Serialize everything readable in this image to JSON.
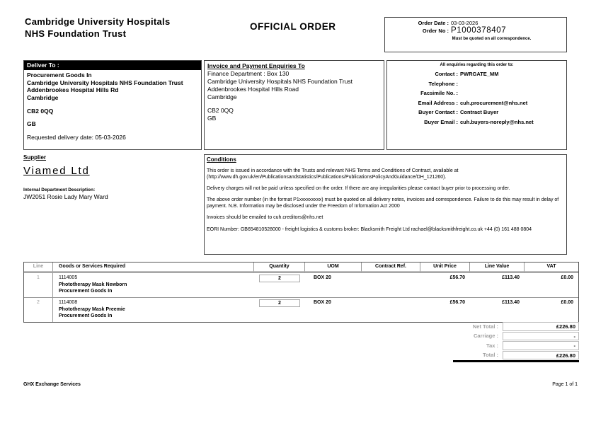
{
  "colors": {
    "header_bar": "#000000",
    "muted_label": "#9f9f9f",
    "border_gray": "#999999"
  },
  "page_header": {
    "org_name_line1": "Cambridge University Hospitals",
    "org_name_line2": "NHS Foundation Trust",
    "doc_title": "OFFICIAL ORDER"
  },
  "order_box": {
    "date_label": "Order Date :",
    "date_value": "03-03-2026",
    "no_label": "Order No :",
    "no_value": "P1000378407",
    "note": "Must be quoted on all correspondence."
  },
  "deliver_to": {
    "header": "Deliver To :",
    "lines": [
      "Procurement Goods In",
      "Cambridge University Hospitals NHS Foundation Trust",
      "Addenbrookes Hospital Hills Rd",
      "Cambridge"
    ],
    "postcode": "CB2 0QQ",
    "country": "GB",
    "requested_delivery": "Requested delivery date: 05-03-2026"
  },
  "invoice_to": {
    "header": "Invoice and Payment Enquiries To",
    "lines": [
      "Finance Department : Box 130",
      "Cambridge University Hospitals NHS Foundation Trust",
      "Addenbrookes Hospital Hills Road",
      "Cambridge"
    ],
    "postcode": "CB2 0QQ",
    "country": "GB"
  },
  "enquiries": {
    "heading": "All enquiries regarding this order to:",
    "rows": [
      {
        "label": "Contact :",
        "value": "PWRGATE_MM"
      },
      {
        "label": "Telephone :",
        "value": ""
      },
      {
        "label": "Facsimile No. :",
        "value": ""
      },
      {
        "label": "Email Address :",
        "value": "cuh.procurement@nhs.net"
      },
      {
        "label": "Buyer Contact :",
        "value": "Contract Buyer"
      },
      {
        "label": "Buyer Email :",
        "value": "cuh.buyers-noreply@nhs.net"
      }
    ]
  },
  "supplier": {
    "header": "Supplier",
    "name": "Viamed Ltd",
    "dept_label": "Internal Department Description:",
    "dept_value": "JW2051 Rosie Lady Mary Ward"
  },
  "conditions": {
    "header": "Conditions",
    "paragraphs": [
      "This order is issued in accordance with the Trusts and relevant NHS Terms and Conditions of Contract, available at (http://www.dh.gov.uk/en/Publicationsandstatistics/Publications/PublicationsPolicyAndGuidance/DH_121260).",
      "Delivery charges will not be paid unless specified on the order. If there are any irregularities please contact buyer prior to processing order.",
      "The above order number (in the format P1xxxxxxxxx) must be quoted on all delivery notes, invoices and correspondence. Failure to do this may result in delay of payment. N.B. Information may be disclosed under the Freedom of Information Act 2000",
      "Invoices should be emailed to cuh.creditors@nhs.net",
      "EORI Number: GB654810528000 - freight logistics & customs broker: Blacksmith Freight Ltd rachael@blacksmithfreight.co.uk +44 (0) 161 488 0804"
    ]
  },
  "items_table": {
    "headers": {
      "line": "Line",
      "goods": "Goods or Services Required",
      "quantity": "Quantity",
      "uom": "UOM",
      "contract_ref": "Contract Ref.",
      "unit_price": "Unit Price",
      "line_value": "Line Value",
      "vat": "VAT"
    },
    "rows": [
      {
        "line": "1",
        "code": "1114005",
        "description": "Phototherapy Mask Newborn",
        "category": "Procurement Goods In",
        "quantity": "2",
        "uom": "BOX 20",
        "contract_ref": "",
        "unit_price": "£56.70",
        "line_value": "£113.40",
        "vat": "£0.00"
      },
      {
        "line": "2",
        "code": "1114008",
        "description": "Phototherapy Mask Preemie",
        "category": "Procurement Goods In",
        "quantity": "2",
        "uom": "BOX 20",
        "contract_ref": "",
        "unit_price": "£56.70",
        "line_value": "£113.40",
        "vat": "£0.00"
      }
    ]
  },
  "totals": {
    "net_label": "Net Total :",
    "net_value": "£226.80",
    "carriage_label": "Carriage :",
    "carriage_value": "-",
    "tax_label": "Tax :",
    "tax_value": "-",
    "total_label": "Total :",
    "total_value": "£226.80"
  },
  "footer": {
    "left": "GHX Exchange Services",
    "right": "Page 1 of 1"
  }
}
